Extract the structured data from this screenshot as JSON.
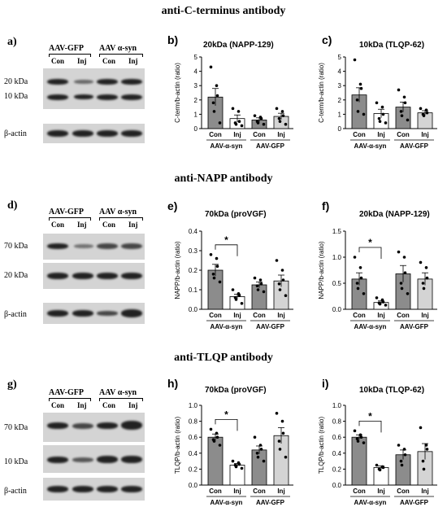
{
  "sections": [
    {
      "title": "anti-C-terminus antibody"
    },
    {
      "title": "anti-NAPP antibody"
    },
    {
      "title": "anti-TLQP antibody"
    }
  ],
  "blots": [
    {
      "label": "a)",
      "group_left": "AAV-GFP",
      "group_right": "AAV α-syn",
      "lanes": [
        "Con",
        "Inj",
        "Con",
        "Inj"
      ],
      "bands": [
        "20 kDa",
        "10 kDa",
        "β-actin"
      ]
    },
    {
      "label": "d)",
      "group_left": "AAV-GFP",
      "group_right": "AAV α-syn",
      "lanes": [
        "Con",
        "Inj",
        "Con",
        "Inj"
      ],
      "bands": [
        "70 kDa",
        "20 kDa",
        "β-actin"
      ]
    },
    {
      "label": "g)",
      "group_left": "AAV-GFP",
      "group_right": "AAV α-syn",
      "lanes": [
        "Con",
        "Inj",
        "Con",
        "Inj"
      ],
      "bands": [
        "70 kDa",
        "10 kDa",
        "β-actin"
      ]
    }
  ],
  "chart_data": [
    {
      "panel": "b)",
      "type": "bar",
      "title": "20kDa (NAPP-129)",
      "ylabel": "C-term/b-actin (ratio)",
      "categories": [
        "Con",
        "Inj",
        "Con",
        "Inj"
      ],
      "groups": [
        "AAV-α-syn",
        "AAV-GFP"
      ],
      "values": [
        2.2,
        0.7,
        0.6,
        0.85
      ],
      "errors": [
        0.6,
        0.25,
        0.15,
        0.22
      ],
      "ylim": [
        0,
        5
      ],
      "yticks": [
        "0",
        "1",
        "2",
        "3",
        "4",
        "5"
      ],
      "points": [
        [
          4.3,
          3.0,
          2.3,
          1.8,
          1.2,
          0.4
        ],
        [
          1.4,
          1.2,
          0.5,
          0.4,
          0.3,
          0.2
        ],
        [
          0.9,
          0.8,
          0.7,
          0.5,
          0.4,
          0.3
        ],
        [
          1.4,
          1.2,
          0.9,
          0.7,
          0.5,
          0.3
        ]
      ],
      "bar_colors": [
        "#8c8c8c",
        "#ffffff",
        "#8c8c8c",
        "#d4d4d4"
      ],
      "significance": null
    },
    {
      "panel": "c)",
      "type": "bar",
      "title": "10kDa (TLQP-62)",
      "ylabel": "C-term/b-actin (ratio)",
      "categories": [
        "Con",
        "Inj",
        "Con",
        "Inj"
      ],
      "groups": [
        "AAV-α-syn",
        "AAV-GFP"
      ],
      "values": [
        2.35,
        1.05,
        1.5,
        1.1
      ],
      "errors": [
        0.5,
        0.3,
        0.35,
        0.15
      ],
      "ylim": [
        0,
        5
      ],
      "yticks": [
        "0",
        "1",
        "2",
        "3",
        "4",
        "5"
      ],
      "points": [
        [
          4.8,
          3.1,
          2.8,
          2.0,
          1.2,
          1.0
        ],
        [
          1.8,
          1.5,
          1.0,
          0.7,
          0.5,
          0.4
        ],
        [
          2.7,
          2.2,
          1.8,
          1.2,
          0.9,
          0.6
        ],
        [
          1.4,
          1.3,
          1.1,
          1.0,
          0.9
        ]
      ],
      "bar_colors": [
        "#8c8c8c",
        "#ffffff",
        "#8c8c8c",
        "#d4d4d4"
      ],
      "significance": null
    },
    {
      "panel": "e)",
      "type": "bar",
      "title": "70kDa (proVGF)",
      "ylabel": "NAPP/b-actin (ratio)",
      "categories": [
        "Con",
        "Inj",
        "Con",
        "Inj"
      ],
      "groups": [
        "AAV-α-syn",
        "AAV-GFP"
      ],
      "values": [
        0.2,
        0.065,
        0.125,
        0.145
      ],
      "errors": [
        0.03,
        0.012,
        0.015,
        0.03
      ],
      "ylim": [
        0,
        0.4
      ],
      "yticks": [
        "0.0",
        "0.1",
        "0.2",
        "0.3",
        "0.4"
      ],
      "points": [
        [
          0.28,
          0.26,
          0.22,
          0.18,
          0.16,
          0.14
        ],
        [
          0.1,
          0.08,
          0.07,
          0.06,
          0.05,
          0.03
        ],
        [
          0.16,
          0.15,
          0.13,
          0.12,
          0.1,
          0.09
        ],
        [
          0.25,
          0.2,
          0.15,
          0.13,
          0.1,
          0.07
        ]
      ],
      "bar_colors": [
        "#8c8c8c",
        "#ffffff",
        "#8c8c8c",
        "#d4d4d4"
      ],
      "significance": "*"
    },
    {
      "panel": "f)",
      "type": "bar",
      "title": "20kDa (NAPP-129)",
      "ylabel": "NAPP/b-actin (ratio)",
      "categories": [
        "Con",
        "Inj",
        "Con",
        "Inj"
      ],
      "groups": [
        "AAV-α-syn",
        "AAV-GFP"
      ],
      "values": [
        0.58,
        0.13,
        0.68,
        0.58
      ],
      "errors": [
        0.12,
        0.03,
        0.16,
        0.12
      ],
      "ylim": [
        0,
        1.5
      ],
      "yticks": [
        "0.0",
        "0.5",
        "1.0",
        "1.5"
      ],
      "points": [
        [
          1.0,
          0.8,
          0.6,
          0.5,
          0.4,
          0.3
        ],
        [
          0.22,
          0.18,
          0.14,
          0.12,
          0.1,
          0.08
        ],
        [
          1.1,
          1.0,
          0.7,
          0.5,
          0.4,
          0.3
        ],
        [
          0.9,
          0.8,
          0.6,
          0.5,
          0.4
        ]
      ],
      "bar_colors": [
        "#8c8c8c",
        "#ffffff",
        "#8c8c8c",
        "#d4d4d4"
      ],
      "significance": "*"
    },
    {
      "panel": "h)",
      "type": "bar",
      "title": "70kDa (proVGF)",
      "ylabel": "TLQP/b-actin (ratio)",
      "categories": [
        "Con",
        "Inj",
        "Con",
        "Inj"
      ],
      "groups": [
        "AAV-α-syn",
        "AAV-GFP"
      ],
      "values": [
        0.6,
        0.25,
        0.44,
        0.62
      ],
      "errors": [
        0.04,
        0.02,
        0.05,
        0.1
      ],
      "ylim": [
        0,
        1.0
      ],
      "yticks": [
        "0.0",
        "0.2",
        "0.4",
        "0.6",
        "0.8",
        "1.0"
      ],
      "points": [
        [
          0.7,
          0.65,
          0.6,
          0.57,
          0.55,
          0.5
        ],
        [
          0.3,
          0.28,
          0.26,
          0.25,
          0.23,
          0.21
        ],
        [
          0.6,
          0.5,
          0.45,
          0.4,
          0.35,
          0.3
        ],
        [
          0.9,
          0.8,
          0.65,
          0.55,
          0.45,
          0.35
        ]
      ],
      "bar_colors": [
        "#8c8c8c",
        "#ffffff",
        "#8c8c8c",
        "#d4d4d4"
      ],
      "significance": "*"
    },
    {
      "panel": "i)",
      "type": "bar",
      "title": "10kDa (TLQP-62)",
      "ylabel": "TLQP/b-actin (ratio)",
      "categories": [
        "Con",
        "Inj",
        "Con",
        "Inj"
      ],
      "groups": [
        "AAV-α-syn",
        "AAV-GFP"
      ],
      "values": [
        0.6,
        0.22,
        0.38,
        0.42
      ],
      "errors": [
        0.03,
        0.02,
        0.06,
        0.1
      ],
      "ylim": [
        0,
        1.0
      ],
      "yticks": [
        "0.0",
        "0.2",
        "0.4",
        "0.6",
        "0.8",
        "1.0"
      ],
      "points": [
        [
          0.68,
          0.63,
          0.6,
          0.58,
          0.55,
          0.53
        ],
        [
          0.25,
          0.23,
          0.22,
          0.2,
          0.19
        ],
        [
          0.5,
          0.45,
          0.38,
          0.3,
          0.25
        ],
        [
          0.72,
          0.5,
          0.45,
          0.3,
          0.2
        ]
      ],
      "bar_colors": [
        "#8c8c8c",
        "#ffffff",
        "#8c8c8c",
        "#d4d4d4"
      ],
      "significance": "*"
    }
  ]
}
